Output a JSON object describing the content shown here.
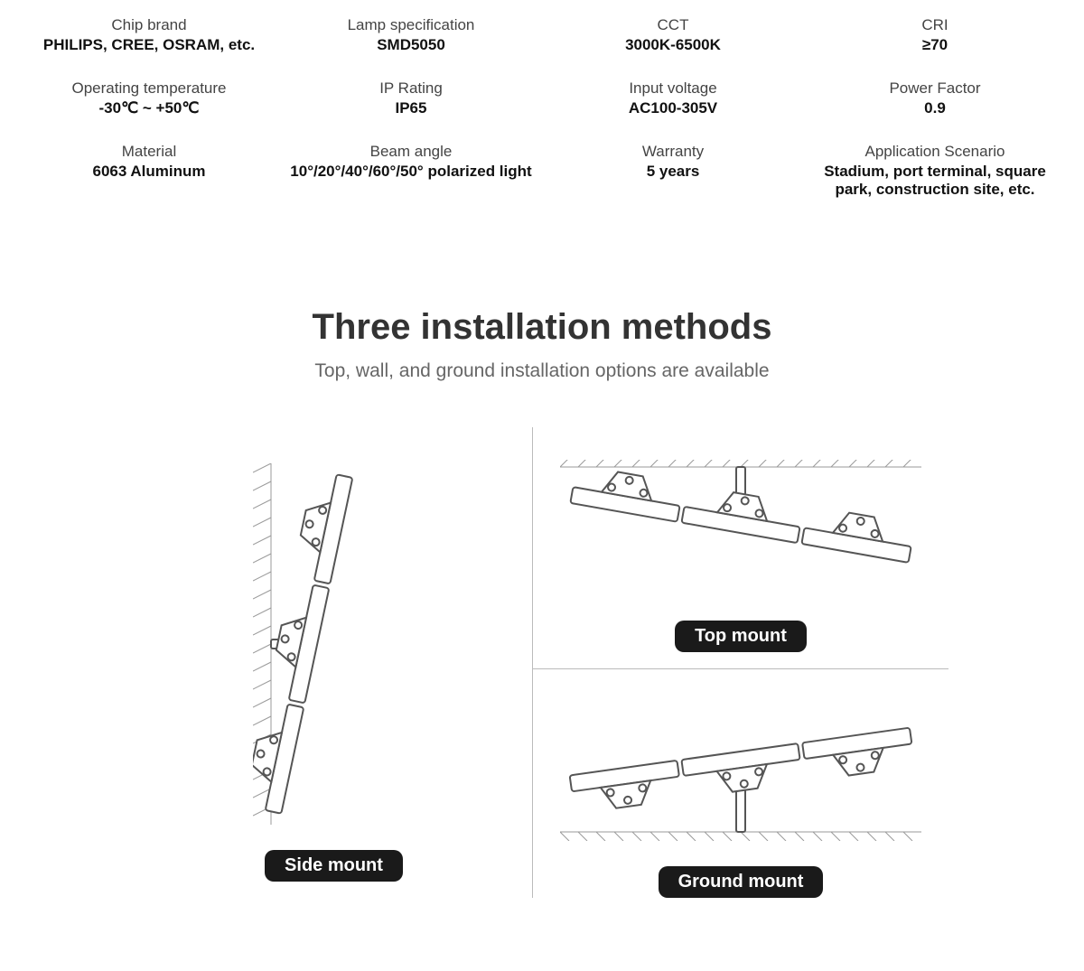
{
  "specs": [
    {
      "label": "Chip brand",
      "value": "PHILIPS, CREE, OSRAM, etc."
    },
    {
      "label": "Lamp specification",
      "value": "SMD5050"
    },
    {
      "label": "CCT",
      "value": "3000K-6500K"
    },
    {
      "label": "CRI",
      "value": "≥70"
    },
    {
      "label": "Operating temperature",
      "value": "-30℃ ~ +50℃"
    },
    {
      "label": "IP Rating",
      "value": "IP65"
    },
    {
      "label": "Input voltage",
      "value": "AC100-305V"
    },
    {
      "label": "Power Factor",
      "value": "0.9"
    },
    {
      "label": "Material",
      "value": "6063 Aluminum"
    },
    {
      "label": "Beam angle",
      "value": "10°/20°/40°/60°/50° polarized light"
    },
    {
      "label": "Warranty",
      "value": "5 years"
    },
    {
      "label": "Application Scenario",
      "value": "Stadium, port terminal, square park, construction site, etc."
    }
  ],
  "install": {
    "title": "Three installation methods",
    "subtitle": "Top, wall, and ground installation options are available",
    "side_label": "Side mount",
    "top_label": "Top mount",
    "ground_label": "Ground mount"
  },
  "style": {
    "stroke": "#555555",
    "stroke_thin": "#888888",
    "badge_bg": "#1a1a1a",
    "badge_fg": "#ffffff",
    "hatch": "#999999"
  }
}
